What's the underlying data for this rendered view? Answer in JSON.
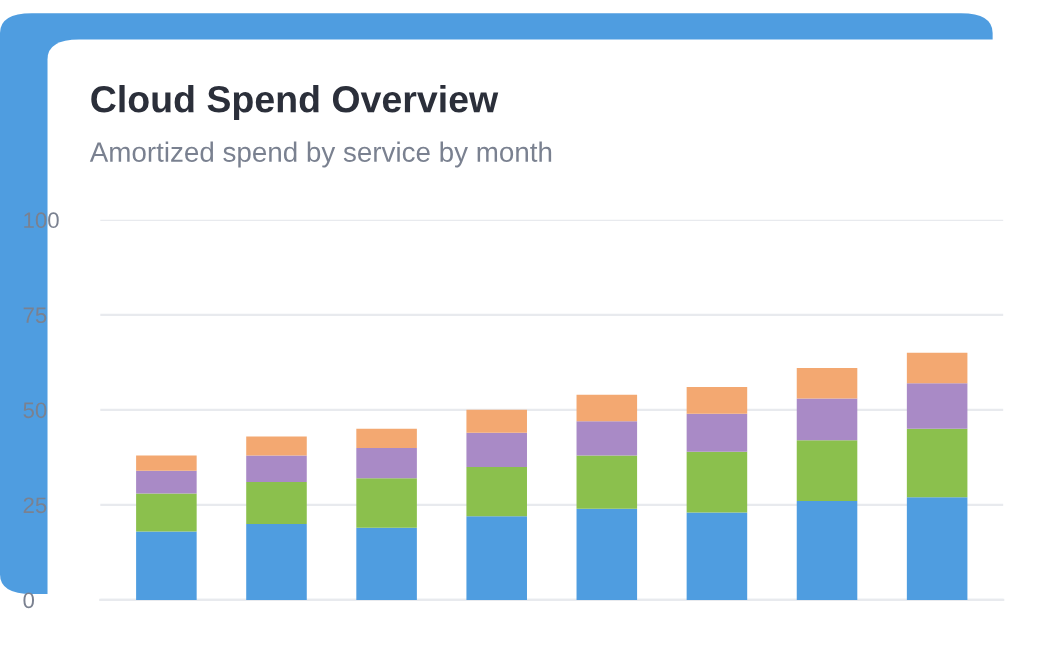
{
  "chart_data": {
    "type": "bar",
    "title": "Cloud Spend Overview",
    "subtitle": "Amortized spend by service by month",
    "categories": [
      null,
      null,
      null,
      null,
      null,
      null,
      null,
      null
    ],
    "stacked": true,
    "series": [
      {
        "color": "#4f9de0",
        "values": [
          18,
          20,
          19,
          22,
          24,
          23,
          26,
          27
        ]
      },
      {
        "color": "#8bc04d",
        "values": [
          10,
          11,
          13,
          13,
          14,
          16,
          16,
          18
        ]
      },
      {
        "color": "#a98ac6",
        "values": [
          6,
          7,
          8,
          9,
          9,
          10,
          11,
          12
        ]
      },
      {
        "color": "#f3a871",
        "values": [
          4,
          5,
          5,
          6,
          7,
          7,
          8,
          8
        ]
      }
    ],
    "ylim": [
      0,
      100
    ],
    "yticks": [
      0,
      25,
      50,
      75,
      100
    ],
    "grid": "y",
    "tick_labels": "y",
    "legend": false
  }
}
